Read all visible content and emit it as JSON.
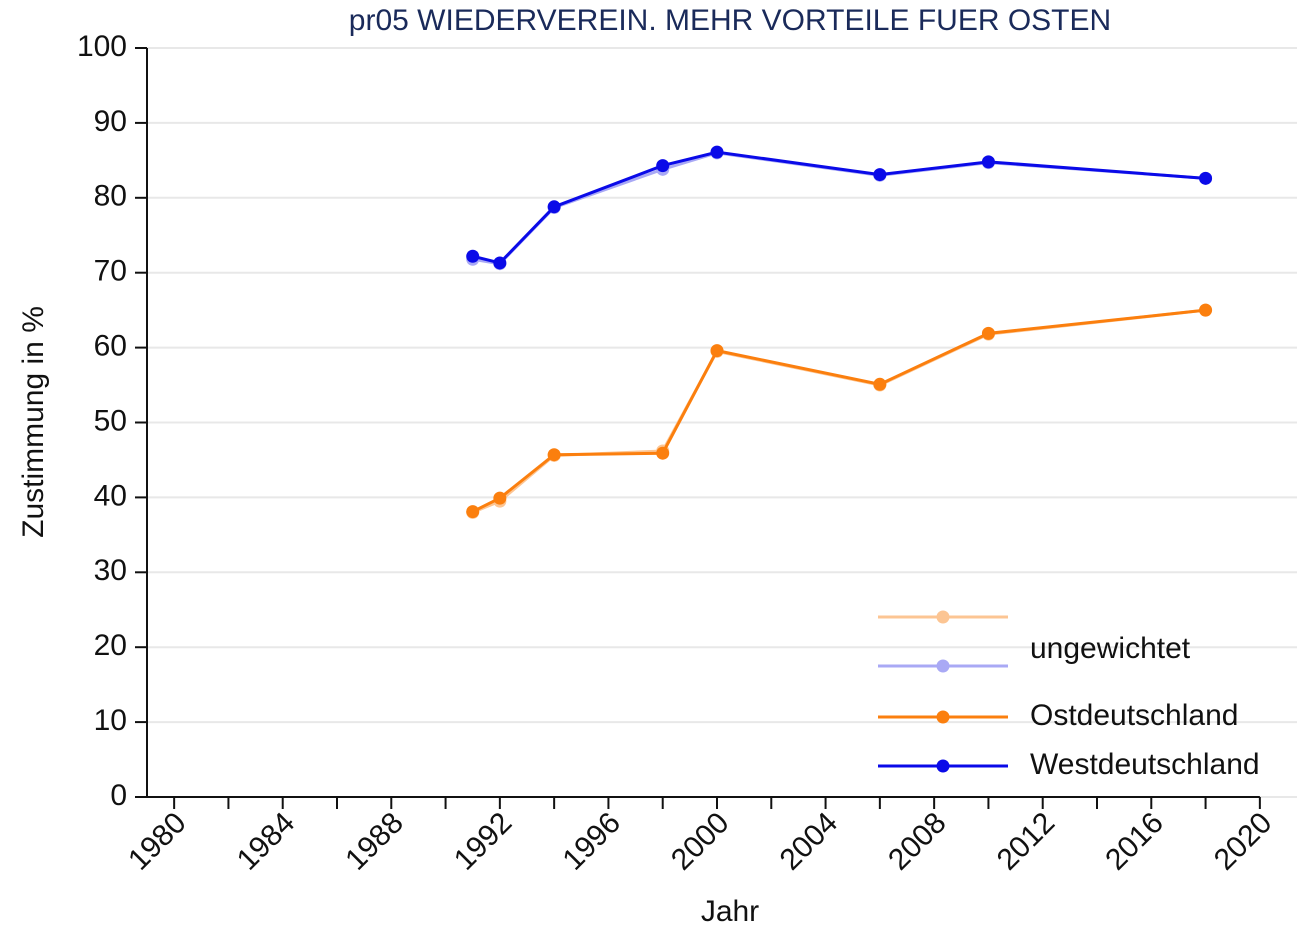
{
  "chart_data": {
    "type": "line",
    "title": "pr05 WIEDERVEREIN. MEHR VORTEILE FUER OSTEN",
    "x_label": "Jahr",
    "y_label": "Zustimmung in %",
    "x": [
      1991,
      1992,
      1994,
      1998,
      2000,
      2006,
      2010,
      2018
    ],
    "series": [
      {
        "color": "#fcc593",
        "values": [
          38.0,
          39.5,
          45.6,
          46.2,
          59.5,
          55.0,
          61.8,
          65.0
        ]
      },
      {
        "color": "#a9a9f5",
        "values": [
          71.8,
          71.2,
          78.7,
          83.8,
          86.0,
          83.0,
          84.7,
          82.6
        ]
      },
      {
        "name": "Ostdeutschland",
        "color": "#fb7f0e",
        "values": [
          38.1,
          39.9,
          45.7,
          45.9,
          59.6,
          55.1,
          61.9,
          65.0
        ]
      },
      {
        "name": "Westdeutschland",
        "color": "#0a0ae8",
        "values": [
          72.2,
          71.3,
          78.8,
          84.3,
          86.1,
          83.1,
          84.8,
          82.6
        ]
      }
    ],
    "legend_group_label": "ungewichtet",
    "xlim": [
      1979,
      2021
    ],
    "xticks": [
      1980,
      1984,
      1988,
      1992,
      1996,
      2000,
      2004,
      2008,
      2012,
      2016,
      2020
    ],
    "xminorticks": [
      1982,
      1986,
      1990,
      1994,
      1998,
      2002,
      2006,
      2010,
      2014,
      2018
    ],
    "ylim": [
      0,
      100
    ],
    "yticks": [
      0,
      10,
      20,
      30,
      40,
      50,
      60,
      70,
      80,
      90,
      100
    ],
    "grid": true,
    "legend": "lower right"
  }
}
